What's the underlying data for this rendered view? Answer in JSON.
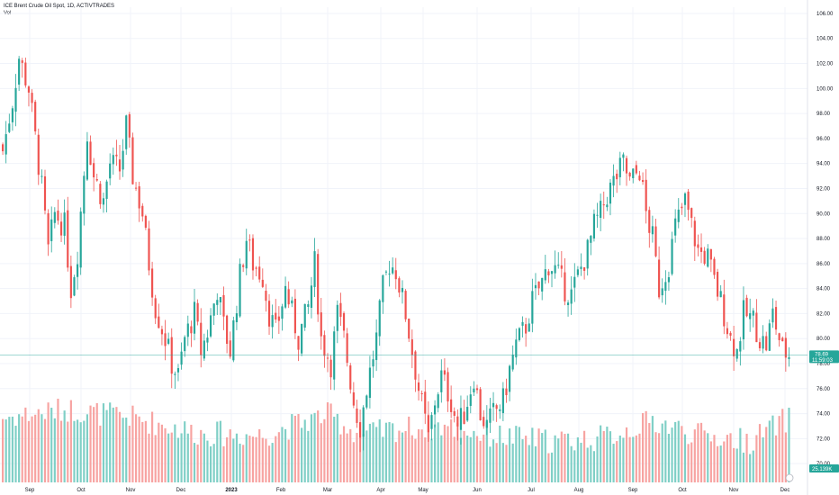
{
  "legend": {
    "title": "ICE Brent Crude Oil Spot, 1D, ACTIVTRADES",
    "volume_label": "Vol"
  },
  "colors": {
    "up": "#26a69a",
    "down": "#ef5350",
    "up_vol": "#7fcfc6",
    "down_vol": "#f7a3a1",
    "grid": "#f0f3fa",
    "price_line": "#26a69a",
    "vol_badge": "#26a69a"
  },
  "chart_data": {
    "type": "candlestick",
    "title": "ICE Brent Crude Oil Spot, 1D, ACTIVTRADES",
    "y_ticks": [
      "106.00",
      "104.00",
      "102.00",
      "100.00",
      "98.00",
      "96.00",
      "94.00",
      "92.00",
      "90.00",
      "88.00",
      "86.00",
      "84.00",
      "82.00",
      "80.00",
      "78.00",
      "76.00",
      "74.00",
      "72.00",
      "70.00"
    ],
    "x_ticks": [
      "Sep",
      "Oct",
      "Nov",
      "Dec",
      "2023",
      "Feb",
      "Mar",
      "Apr",
      "May",
      "Jun",
      "Jul",
      "Aug",
      "Sep",
      "Oct",
      "Nov",
      "Dec"
    ],
    "x_tick_bold": [
      "2023"
    ],
    "ylim": [
      68.5,
      106.5
    ],
    "last_price": "78.69",
    "countdown": "11:59:03",
    "volume_badge": "25.139K",
    "grid": true,
    "close_path": [
      [
        0,
        95.0
      ],
      [
        3,
        99.0
      ],
      [
        5,
        102.5
      ],
      [
        8,
        100.0
      ],
      [
        12,
        92.0
      ],
      [
        14,
        87.0
      ],
      [
        16,
        90.0
      ],
      [
        19,
        89.0
      ],
      [
        21,
        84.0
      ],
      [
        23,
        87.0
      ],
      [
        26,
        96.5
      ],
      [
        28,
        93.0
      ],
      [
        31,
        91.0
      ],
      [
        33,
        94.0
      ],
      [
        36,
        93.5
      ],
      [
        38,
        97.0
      ],
      [
        40,
        93.0
      ],
      [
        43,
        90.0
      ],
      [
        45,
        86.0
      ],
      [
        47,
        82.5
      ],
      [
        50,
        80.0
      ],
      [
        52,
        78.0
      ],
      [
        54,
        77.0
      ],
      [
        56,
        80.0
      ],
      [
        59,
        82.0
      ],
      [
        61,
        79.0
      ],
      [
        63,
        80.5
      ],
      [
        66,
        84.0
      ],
      [
        68,
        81.0
      ],
      [
        70,
        79.0
      ],
      [
        73,
        85.0
      ],
      [
        75,
        88.0
      ],
      [
        77,
        86.0
      ],
      [
        80,
        85.0
      ],
      [
        82,
        82.0
      ],
      [
        84,
        80.5
      ],
      [
        87,
        84.0
      ],
      [
        89,
        82.0
      ],
      [
        91,
        80.0
      ],
      [
        94,
        82.5
      ],
      [
        96,
        86.0
      ],
      [
        98,
        80.0
      ],
      [
        101,
        78.0
      ],
      [
        103,
        82.0
      ],
      [
        105,
        80.0
      ],
      [
        108,
        75.0
      ],
      [
        110,
        73.0
      ],
      [
        112,
        76.0
      ],
      [
        115,
        80.0
      ],
      [
        117,
        84.0
      ],
      [
        119,
        86.0
      ],
      [
        121,
        85.5
      ],
      [
        124,
        82.0
      ],
      [
        126,
        79.0
      ],
      [
        128,
        76.0
      ],
      [
        131,
        72.0
      ],
      [
        133,
        75.0
      ],
      [
        135,
        77.0
      ],
      [
        138,
        75.0
      ],
      [
        140,
        73.0
      ],
      [
        142,
        74.0
      ],
      [
        145,
        77.0
      ],
      [
        147,
        74.0
      ],
      [
        149,
        73.0
      ],
      [
        151,
        74.0
      ],
      [
        154,
        75.0
      ],
      [
        156,
        77.5
      ],
      [
        158,
        79.5
      ],
      [
        161,
        81.0
      ],
      [
        163,
        83.0
      ],
      [
        166,
        84.5
      ],
      [
        168,
        86.0
      ],
      [
        170,
        85.5
      ],
      [
        173,
        84.0
      ],
      [
        175,
        83.5
      ],
      [
        177,
        85.0
      ],
      [
        180,
        87.0
      ],
      [
        182,
        89.0
      ],
      [
        184,
        90.0
      ],
      [
        186,
        91.5
      ],
      [
        189,
        93.0
      ],
      [
        191,
        94.0
      ],
      [
        193,
        92.5
      ],
      [
        196,
        93.5
      ],
      [
        198,
        90.0
      ],
      [
        200,
        88.0
      ],
      [
        202,
        84.0
      ],
      [
        205,
        86.0
      ],
      [
        207,
        89.0
      ],
      [
        210,
        91.0
      ],
      [
        212,
        89.0
      ],
      [
        214,
        87.0
      ],
      [
        217,
        86.5
      ],
      [
        219,
        84.5
      ],
      [
        221,
        83.0
      ],
      [
        224,
        80.0
      ],
      [
        226,
        79.0
      ],
      [
        228,
        82.0
      ],
      [
        231,
        81.5
      ],
      [
        233,
        80.0
      ],
      [
        235,
        79.5
      ],
      [
        237,
        82.0
      ],
      [
        240,
        79.0
      ],
      [
        242,
        78.69
      ]
    ],
    "n_candles": 243,
    "volume_ylim": [
      0,
      100
    ],
    "volume_profile": [
      [
        0,
        55
      ],
      [
        20,
        62
      ],
      [
        40,
        55
      ],
      [
        60,
        42
      ],
      [
        80,
        40
      ],
      [
        100,
        58
      ],
      [
        110,
        40
      ],
      [
        120,
        45
      ],
      [
        135,
        48
      ],
      [
        150,
        40
      ],
      [
        170,
        35
      ],
      [
        185,
        38
      ],
      [
        200,
        52
      ],
      [
        215,
        40
      ],
      [
        230,
        35
      ],
      [
        242,
        55
      ]
    ]
  }
}
